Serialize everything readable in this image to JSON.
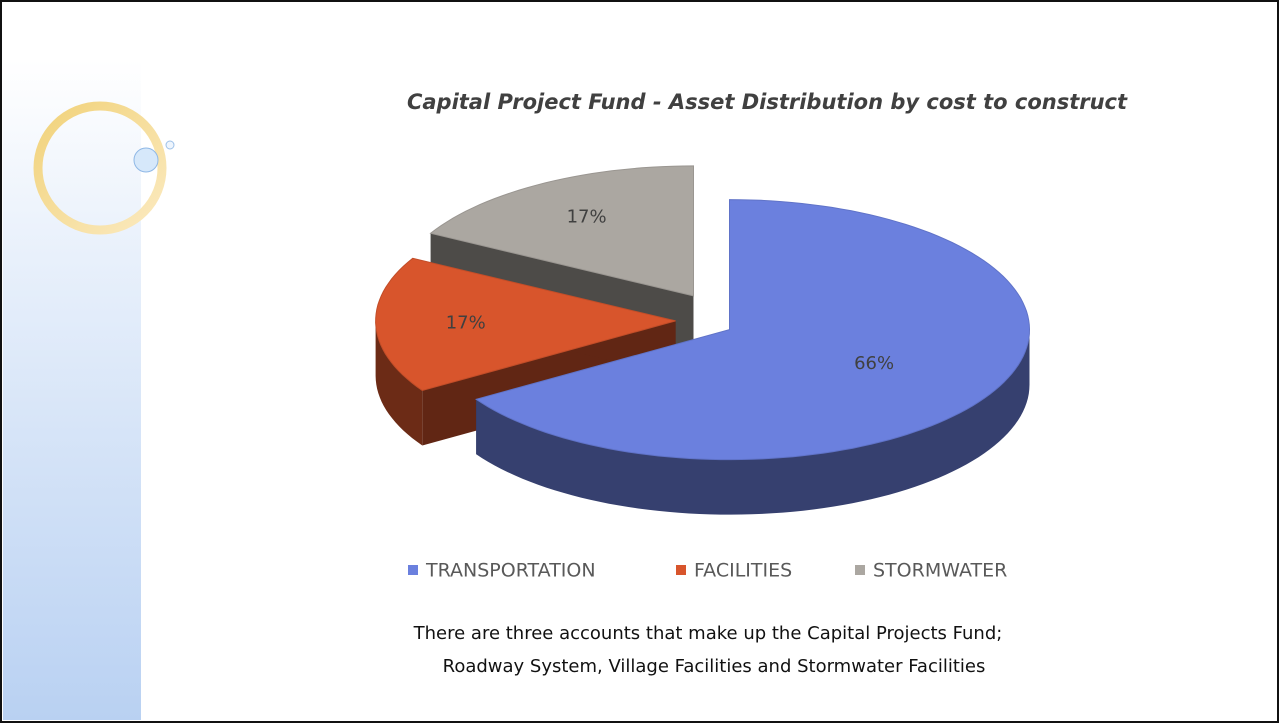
{
  "chart_data": {
    "type": "pie",
    "title": "Capital Project Fund - Asset Distribution by cost to construct",
    "categories": [
      "TRANSPORTATION",
      "FACILITIES",
      "STORMWATER"
    ],
    "values": [
      66,
      17,
      17
    ],
    "value_labels": [
      "66%",
      "17%",
      "17%"
    ],
    "colors": [
      "#6b80de",
      "#d8552c",
      "#aba7a1"
    ],
    "caption": [
      "There are three accounts that make up the Capital Projects Fund;",
      "Roadway System, Village Facilities and Stormwater Facilities"
    ]
  }
}
